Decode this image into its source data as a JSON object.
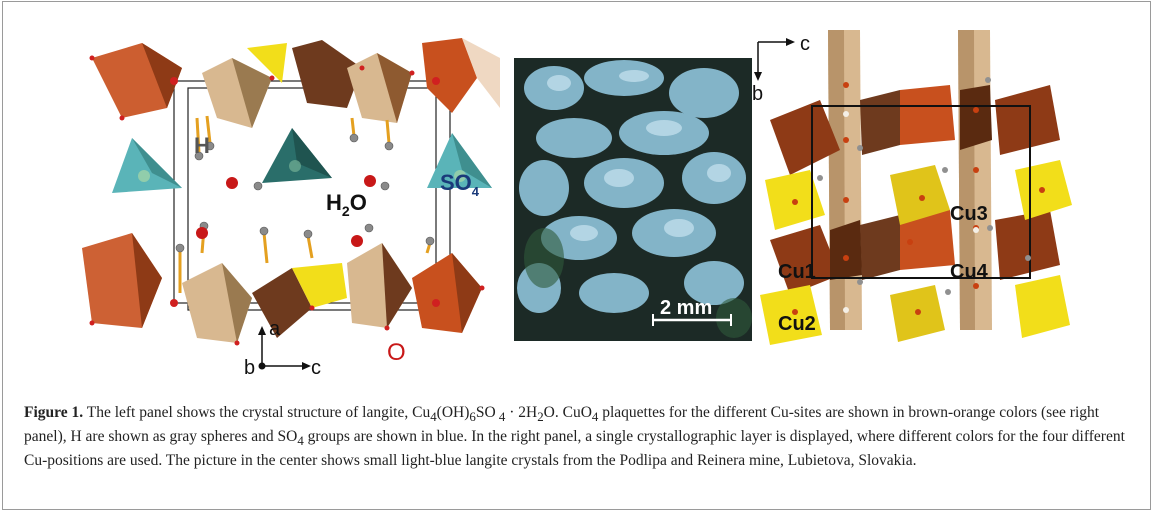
{
  "figure": {
    "left_panel": {
      "labels": {
        "h": "H",
        "h2o": "H",
        "h2o_sub": "2",
        "h2o_tail": "O",
        "so4": "SO",
        "so4_sub": "4",
        "o": "O",
        "axis_a": "a",
        "axis_b": "b",
        "axis_c": "c"
      }
    },
    "center_panel": {
      "scale_bar": "2 mm",
      "description": ""
    },
    "right_panel": {
      "axis_c": "c",
      "axis_b": "b",
      "cu1": "Cu1",
      "cu2": "Cu2",
      "cu3": "Cu3",
      "cu4": "Cu4"
    },
    "caption": {
      "label": "Figure 1.",
      "text1": " The left panel shows the crystal structure of langite, Cu",
      "sub4": "4",
      "text2": "(OH)",
      "sub6": "6",
      "text3": "SO",
      "sub4b": " 4",
      "text4": " · 2H",
      "sub2": "2",
      "text5": "O. CuO",
      "sub4c": "4",
      "text6": " plaquettes for the different Cu-sites are shown in brown-orange colors (see right panel), H are shown as gray spheres and SO",
      "sub4d": "4",
      "text7": " groups are shown in blue. In the right panel, a single crystallographic layer is displayed, where different colors for the four different Cu-positions are used. The picture in the center shows small light-blue langite crystals from the Podlipa and Reinera mine, Lubietova, Slovakia."
    },
    "colors": {
      "brown": "#6e3a1e",
      "orange": "#c8501e",
      "tan": "#d8b890",
      "yellow": "#f2de1a",
      "teal": "#3f8f8f",
      "photo_bg": "#1c2a26",
      "crystal": "#8fc3da"
    }
  }
}
